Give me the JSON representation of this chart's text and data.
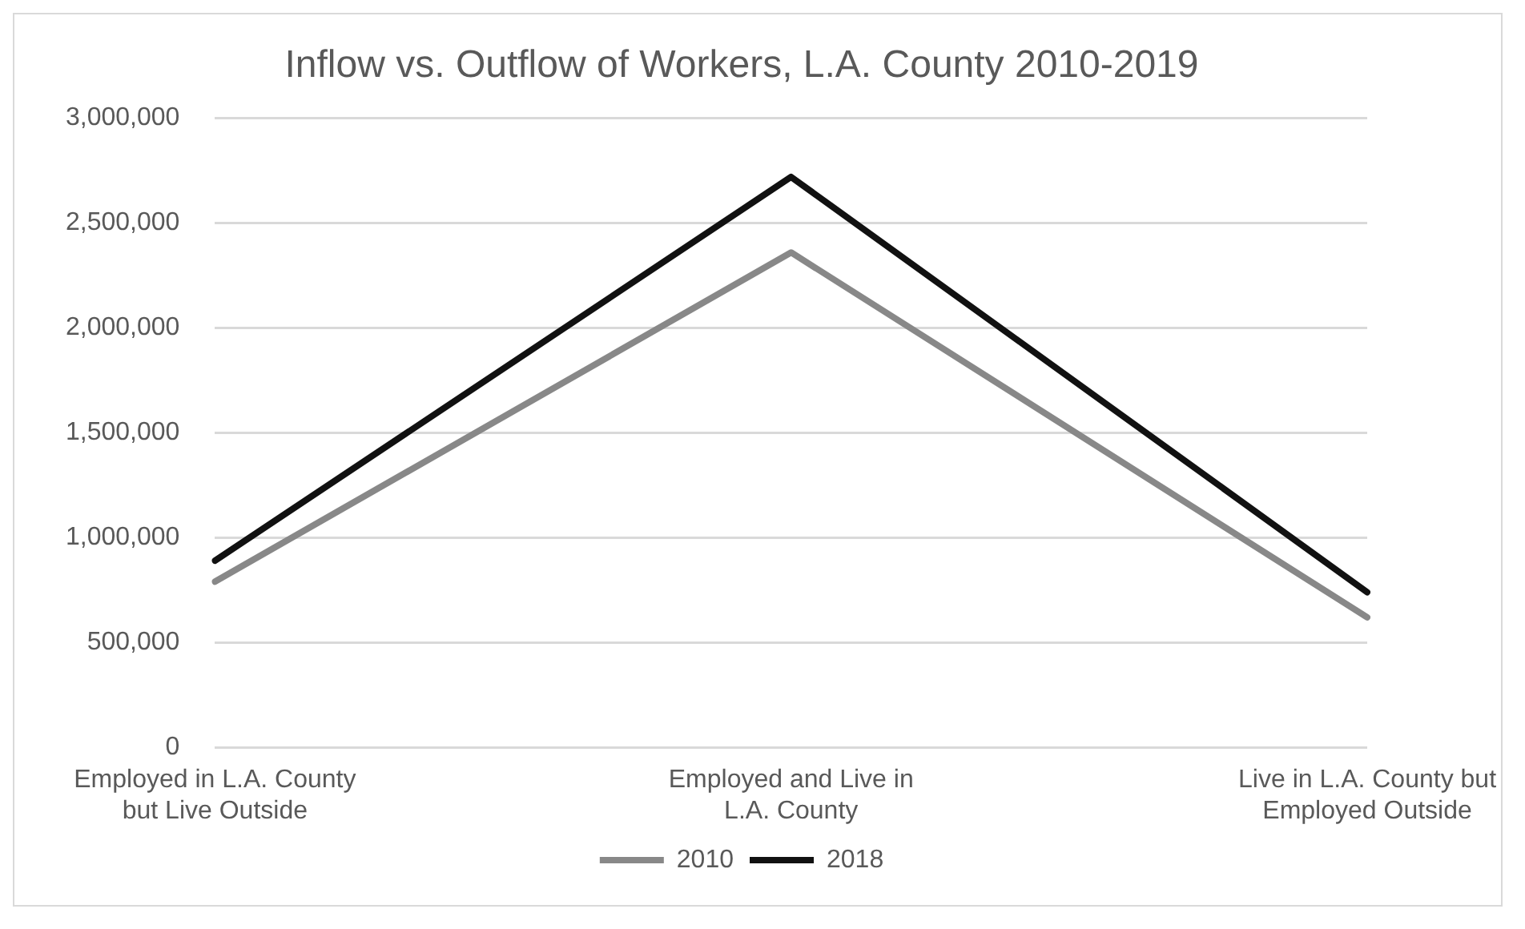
{
  "chart_data": {
    "type": "line",
    "title": "Inflow vs. Outflow of Workers, L.A. County 2010-2019",
    "categories": [
      "Employed in L.A. County but Live Outside",
      "Employed and Live in L.A. County",
      "Live in L.A. County but Employed Outside"
    ],
    "series": [
      {
        "name": "2010",
        "color": "#888888",
        "values": [
          790000,
          2360000,
          620000
        ]
      },
      {
        "name": "2018",
        "color": "#111111",
        "values": [
          890000,
          2720000,
          740000
        ]
      }
    ],
    "ylim": [
      0,
      3000000
    ],
    "yticks": [
      0,
      {
        "value": 500000,
        "label": "500,000"
      },
      {
        "value": 1000000,
        "label": "1,000,000"
      },
      {
        "value": 1500000,
        "label": "1,500,000"
      },
      {
        "value": 2000000,
        "label": "2,000,000"
      },
      {
        "value": 2500000,
        "label": "2,500,000"
      },
      {
        "value": 3000000,
        "label": "3,000,000"
      }
    ],
    "grid": "y",
    "legend": "bottom",
    "marker": "none",
    "line_style": "solid"
  }
}
